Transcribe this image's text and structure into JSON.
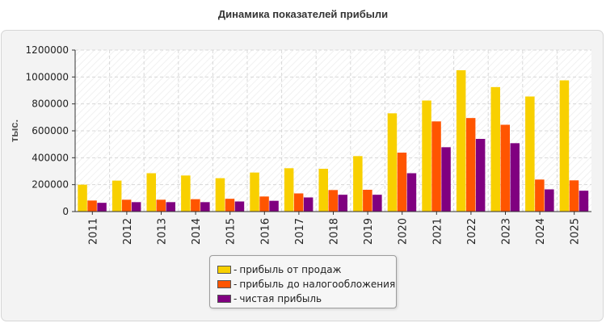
{
  "title": "Динамика показателей прибыли",
  "legend": {
    "dash": "-",
    "items": [
      {
        "label": "прибыль от продаж",
        "color": "#f8d000"
      },
      {
        "label": "прибыль до налогообложения",
        "color": "#ff5500"
      },
      {
        "label": "чистая прибыль",
        "color": "#800080"
      }
    ]
  },
  "chart_data": {
    "type": "bar",
    "title": "Динамика показателей прибыли",
    "xlabel": "",
    "ylabel": "тыс.",
    "ylim": [
      0,
      1200000
    ],
    "yticks": [
      0,
      200000,
      400000,
      600000,
      800000,
      1000000,
      1200000
    ],
    "ytick_labels": [
      "0",
      "200000",
      "400000",
      "600000",
      "800000",
      "1000000",
      "1200000"
    ],
    "grid": true,
    "legend_position": "bottom",
    "categories": [
      "2011",
      "2012",
      "2013",
      "2014",
      "2015",
      "2016",
      "2017",
      "2018",
      "2019",
      "2020",
      "2021",
      "2022",
      "2023",
      "2024",
      "2025"
    ],
    "series": [
      {
        "name": "прибыль от продаж",
        "color": "#f8d000",
        "values": [
          200000,
          230000,
          285000,
          268000,
          248000,
          290000,
          322000,
          318000,
          412000,
          730000,
          825000,
          1050000,
          925000,
          855000,
          975000
        ]
      },
      {
        "name": "прибыль до налогообложения",
        "color": "#ff5500",
        "values": [
          82000,
          88000,
          88000,
          92000,
          95000,
          112000,
          135000,
          160000,
          162000,
          438000,
          670000,
          695000,
          645000,
          238000,
          232000
        ]
      },
      {
        "name": "чистая прибыль",
        "color": "#800080",
        "values": [
          65000,
          70000,
          70000,
          70000,
          75000,
          80000,
          105000,
          125000,
          125000,
          285000,
          478000,
          540000,
          508000,
          165000,
          155000
        ]
      }
    ]
  }
}
